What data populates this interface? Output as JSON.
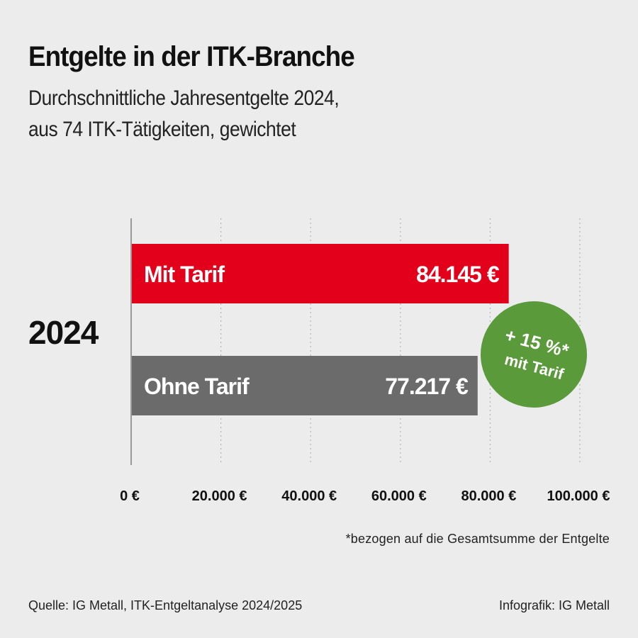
{
  "header": {
    "title": "Entgelte in der ITK-Branche",
    "subtitle_line1": "Durchschnittliche Jahresentgelte 2024,",
    "subtitle_line2": "aus 74 ITK-Tätigkeiten, gewichtet"
  },
  "year_label": "2024",
  "chart_data": {
    "type": "bar",
    "orientation": "horizontal",
    "title": "Entgelte in der ITK-Branche",
    "categories": [
      "Mit Tarif",
      "Ohne Tarif"
    ],
    "values": [
      84145,
      77217
    ],
    "value_labels": [
      "84.145 €",
      "77.217 €"
    ],
    "colors": [
      "#e2001a",
      "#6b6b6b"
    ],
    "xlim": [
      0,
      100000
    ],
    "xticks": [
      0,
      20000,
      40000,
      60000,
      80000,
      100000
    ],
    "xtick_labels": [
      "0 €",
      "20.000 €",
      "40.000 €",
      "60.000 €",
      "80.000 €",
      "100.000 €"
    ],
    "grid": "dotted vertical",
    "annotation": {
      "line1": "+ 15 %*",
      "line2": "mit Tarif",
      "color": "#5a9a3a"
    }
  },
  "footnote": "*bezogen auf die Gesamtsumme der Entgelte",
  "source": "Quelle: IG Metall, ITK-Entgeltanalyse 2024/2025",
  "credit": "Infografik: IG Metall"
}
